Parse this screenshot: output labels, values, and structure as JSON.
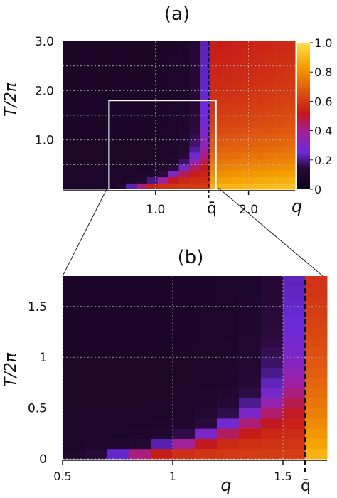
{
  "chart_data": [
    {
      "panel_label": "(a)",
      "type": "heatmap",
      "xlabel": "q",
      "ylabel": "T/2π",
      "x_ticks": [
        "1.0",
        "2.0"
      ],
      "x_tick_values": [
        1.0,
        2.0
      ],
      "y_ticks": [
        "1.0",
        "2.0",
        "3.0"
      ],
      "y_tick_values": [
        1.0,
        2.0,
        3.0
      ],
      "xlim": [
        0.0,
        2.5
      ],
      "ylim": [
        0.0,
        3.0
      ],
      "qbar_label": "q̄",
      "qbar_value": 1.57,
      "grid": true,
      "colorbar": {
        "ticks": [
          "0",
          "0.2",
          "0.4",
          "0.6",
          "0.8",
          "1.0"
        ],
        "tick_values": [
          0,
          0.2,
          0.4,
          0.6,
          0.8,
          1.0
        ],
        "range": [
          0,
          1
        ]
      },
      "grid_cells": {
        "nx": 22,
        "ny": 24
      },
      "zoom_box": {
        "x": [
          0.5,
          1.65
        ],
        "y": [
          0.0,
          1.8
        ]
      }
    },
    {
      "panel_label": "(b)",
      "type": "heatmap",
      "xlabel": "q",
      "ylabel": "T/2π",
      "x_ticks": [
        "0.5",
        "1",
        "1.5"
      ],
      "x_tick_values": [
        0.5,
        1.0,
        1.5
      ],
      "y_ticks": [
        "0",
        "0.5",
        "1",
        "1.5"
      ],
      "y_tick_values": [
        0,
        0.5,
        1.0,
        1.5
      ],
      "xlim": [
        0.5,
        1.7
      ],
      "ylim": [
        0.0,
        1.8
      ],
      "qbar_label": "q̄",
      "qbar_value": 1.6,
      "grid": true,
      "grid_cells": {
        "nx": 12,
        "ny": 18
      }
    }
  ],
  "palette": {
    "stops": [
      "#0d0316",
      "#2a0a3c",
      "#6a2ad8",
      "#a020a0",
      "#c41818",
      "#e05a10",
      "#f4a000",
      "#ffe050"
    ]
  }
}
